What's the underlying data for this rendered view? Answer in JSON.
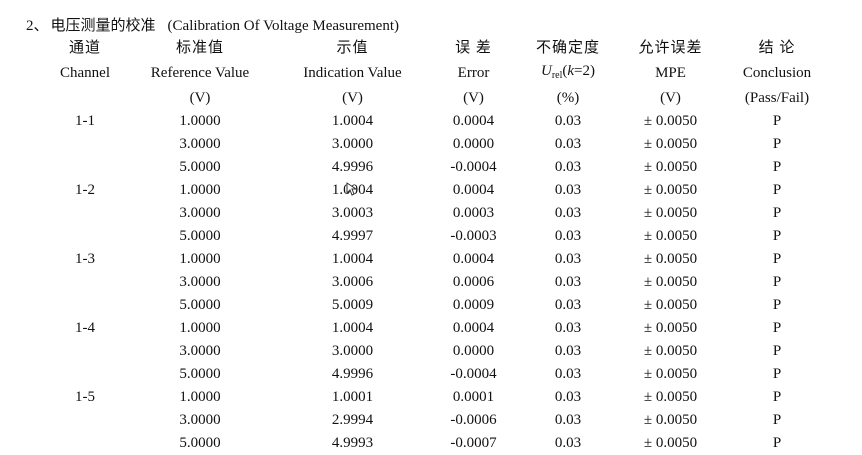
{
  "section": {
    "number": "2、",
    "title_zh": "电压测量的校准",
    "title_en": "(Calibration Of Voltage Measurement)"
  },
  "headers": [
    {
      "zh": "通道",
      "en": "Channel",
      "unit": ""
    },
    {
      "zh": "标准值",
      "en": "Reference Value",
      "unit": "(V)"
    },
    {
      "zh": "示值",
      "en": "Indication Value",
      "unit": "(V)"
    },
    {
      "zh": "误 差",
      "en": "Error",
      "unit": "(V)"
    },
    {
      "zh": "不确定度",
      "en_var": "U",
      "en_sub": "rel",
      "en_open": "(",
      "en_k": "k",
      "en_rest": "=2)",
      "unit": "(%)"
    },
    {
      "zh": "允许误差",
      "en": "MPE",
      "unit": "(V)"
    },
    {
      "zh": "结 论",
      "en": "Conclusion",
      "unit": "(Pass/Fail)"
    }
  ],
  "rows": [
    {
      "channel": "1-1",
      "ref": "1.0000",
      "ind": "1.0004",
      "err": "0.0004",
      "unc": "0.03",
      "mpe": "± 0.0050",
      "concl": "P"
    },
    {
      "channel": "",
      "ref": "3.0000",
      "ind": "3.0000",
      "err": "0.0000",
      "unc": "0.03",
      "mpe": "± 0.0050",
      "concl": "P"
    },
    {
      "channel": "",
      "ref": "5.0000",
      "ind": "4.9996",
      "err": "-0.0004",
      "unc": "0.03",
      "mpe": "± 0.0050",
      "concl": "P"
    },
    {
      "channel": "1-2",
      "ref": "1.0000",
      "ind": "1.0004",
      "err": "0.0004",
      "unc": "0.03",
      "mpe": "± 0.0050",
      "concl": "P"
    },
    {
      "channel": "",
      "ref": "3.0000",
      "ind": "3.0003",
      "err": "0.0003",
      "unc": "0.03",
      "mpe": "± 0.0050",
      "concl": "P"
    },
    {
      "channel": "",
      "ref": "5.0000",
      "ind": "4.9997",
      "err": "-0.0003",
      "unc": "0.03",
      "mpe": "± 0.0050",
      "concl": "P"
    },
    {
      "channel": "1-3",
      "ref": "1.0000",
      "ind": "1.0004",
      "err": "0.0004",
      "unc": "0.03",
      "mpe": "± 0.0050",
      "concl": "P"
    },
    {
      "channel": "",
      "ref": "3.0000",
      "ind": "3.0006",
      "err": "0.0006",
      "unc": "0.03",
      "mpe": "± 0.0050",
      "concl": "P"
    },
    {
      "channel": "",
      "ref": "5.0000",
      "ind": "5.0009",
      "err": "0.0009",
      "unc": "0.03",
      "mpe": "± 0.0050",
      "concl": "P"
    },
    {
      "channel": "1-4",
      "ref": "1.0000",
      "ind": "1.0004",
      "err": "0.0004",
      "unc": "0.03",
      "mpe": "± 0.0050",
      "concl": "P"
    },
    {
      "channel": "",
      "ref": "3.0000",
      "ind": "3.0000",
      "err": "0.0000",
      "unc": "0.03",
      "mpe": "± 0.0050",
      "concl": "P"
    },
    {
      "channel": "",
      "ref": "5.0000",
      "ind": "4.9996",
      "err": "-0.0004",
      "unc": "0.03",
      "mpe": "± 0.0050",
      "concl": "P"
    },
    {
      "channel": "1-5",
      "ref": "1.0000",
      "ind": "1.0001",
      "err": "0.0001",
      "unc": "0.03",
      "mpe": "± 0.0050",
      "concl": "P"
    },
    {
      "channel": "",
      "ref": "3.0000",
      "ind": "2.9994",
      "err": "-0.0006",
      "unc": "0.03",
      "mpe": "± 0.0050",
      "concl": "P"
    },
    {
      "channel": "",
      "ref": "5.0000",
      "ind": "4.9993",
      "err": "-0.0007",
      "unc": "0.03",
      "mpe": "± 0.0050",
      "concl": "P"
    }
  ]
}
